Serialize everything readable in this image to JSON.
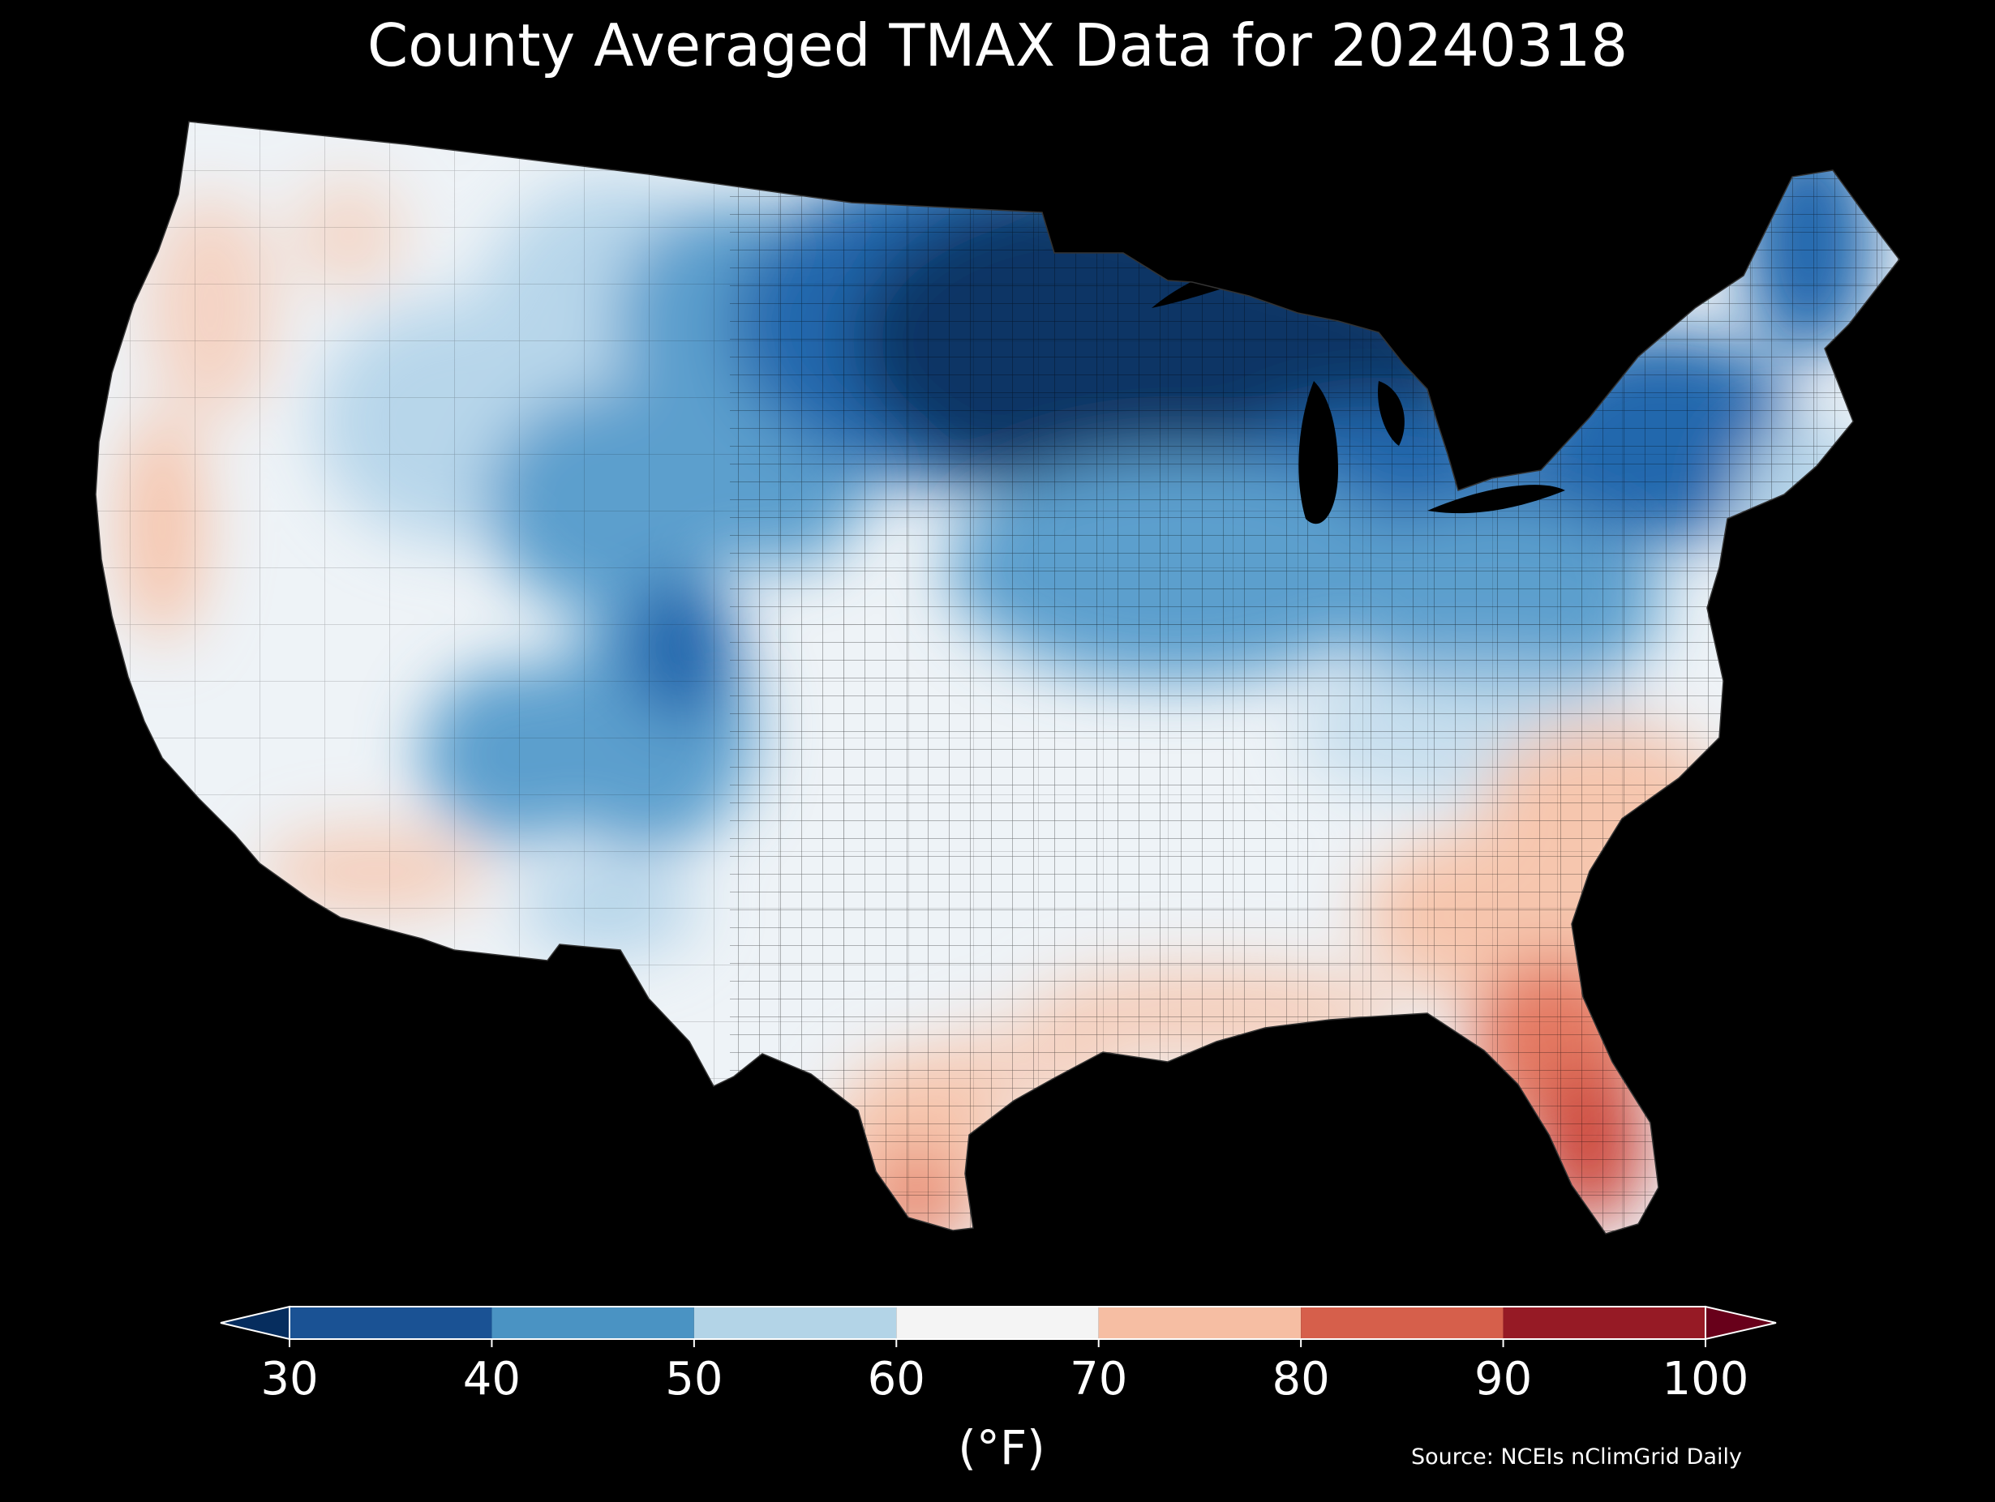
{
  "title": "County Averaged TMAX Data for 20240318",
  "source": "Source: NCEIs nClimGrid Daily",
  "colorbar": {
    "units": "(°F)",
    "ticks": [
      "30",
      "40",
      "50",
      "60",
      "70",
      "80",
      "90",
      "100"
    ],
    "bins": [
      {
        "range": [
          30,
          40
        ],
        "color": "#1a5294"
      },
      {
        "range": [
          40,
          50
        ],
        "color": "#4a93c3"
      },
      {
        "range": [
          50,
          60
        ],
        "color": "#b3d4e7"
      },
      {
        "range": [
          60,
          70
        ],
        "color": "#f4f4f4"
      },
      {
        "range": [
          70,
          80
        ],
        "color": "#f6bea3"
      },
      {
        "range": [
          80,
          90
        ],
        "color": "#d65f4b"
      },
      {
        "range": [
          90,
          100
        ],
        "color": "#961a25"
      }
    ],
    "under_color": "#062d5e",
    "over_color": "#68001a"
  },
  "map": {
    "background": "#000000",
    "region": "Contiguous United States (county level)",
    "colors": {
      "deep_cold": "#0b3565",
      "cold": "#2468ad",
      "cool": "#5b9fcd",
      "mild_cool": "#b7d6ea",
      "neutral": "#eef3f7",
      "warm": "#f6c6ae",
      "hot": "#e47a63",
      "hotter": "#cd4b41"
    }
  }
}
